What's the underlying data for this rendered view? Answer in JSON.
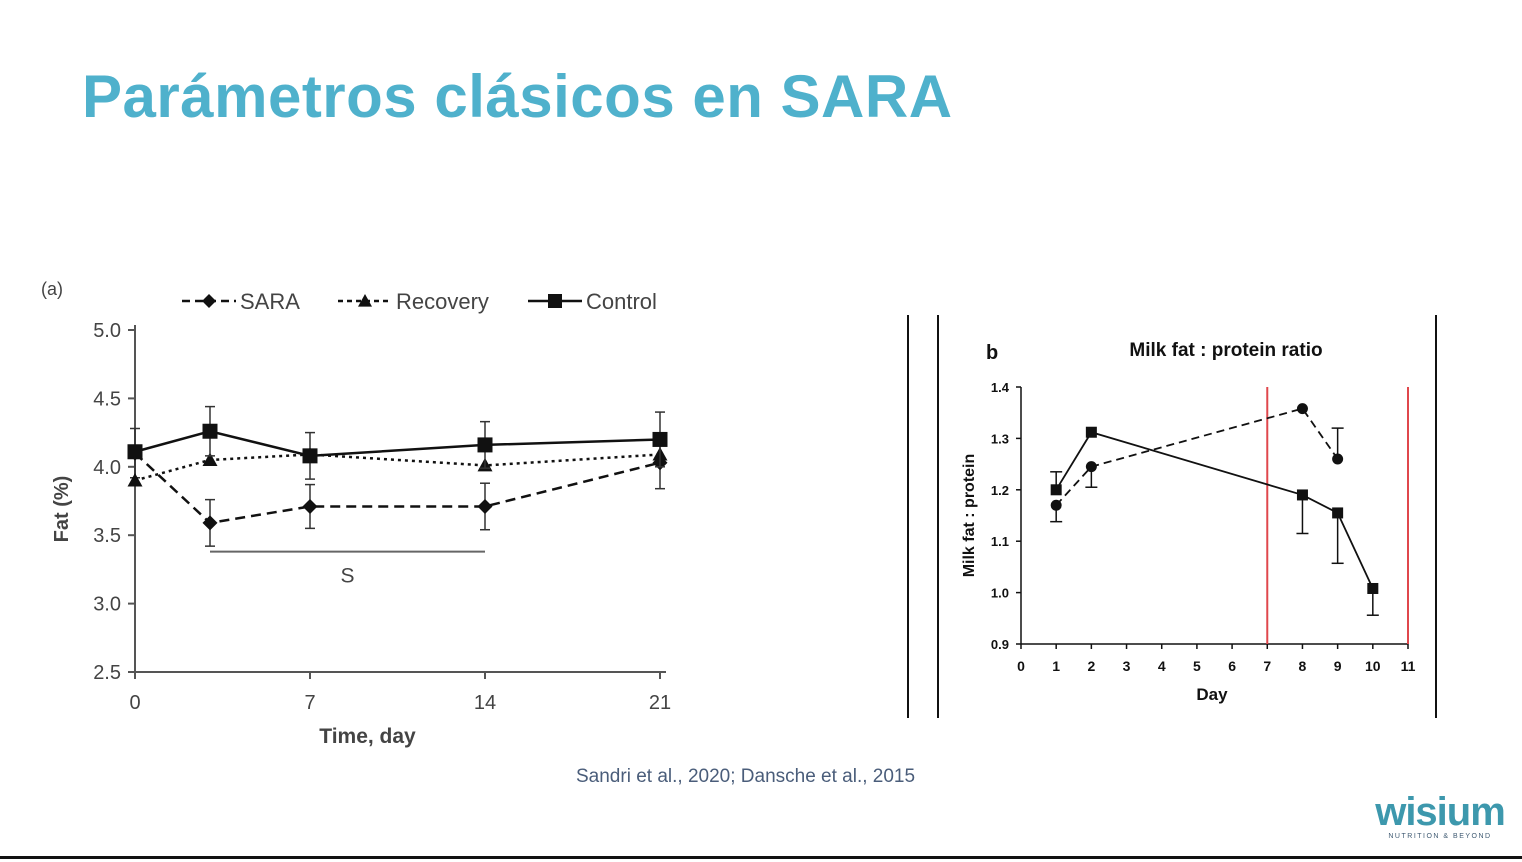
{
  "slide": {
    "title": "Parámetros clásicos en SARA",
    "citation": "Sandri et al., 2020; Dansche et al., 2015"
  },
  "logo": {
    "name": "wisium",
    "tagline": "NUTRITION & BEYOND"
  },
  "colors": {
    "title": "#4fb1cc",
    "logo": "#3d98ad",
    "redLine": "#e0474c"
  },
  "chart_data": [
    {
      "type": "line",
      "panel_label": "(a)",
      "title": "",
      "xlabel": "Time, day",
      "ylabel": "Fat (%)",
      "xlim": [
        0,
        21
      ],
      "ylim": [
        2.5,
        5.0
      ],
      "xticks": [
        0,
        7,
        14,
        21
      ],
      "yticks": [
        2.5,
        3.0,
        3.5,
        4.0,
        4.5,
        5.0
      ],
      "ytick_labels": [
        "2.5",
        "3.0",
        "3.5",
        "4.0",
        "4.5",
        "5.0"
      ],
      "legend_position": "top",
      "series": [
        {
          "name": "SARA",
          "style": "dashed",
          "marker": "diamond",
          "x": [
            0,
            3,
            7,
            14,
            21
          ],
          "y": [
            4.1,
            3.59,
            3.71,
            3.71,
            4.03
          ],
          "err": [
            0.18,
            0.17,
            0.16,
            0.17,
            0.19
          ]
        },
        {
          "name": "Recovery",
          "style": "dotted",
          "marker": "triangle",
          "x": [
            0,
            3,
            7,
            14,
            21
          ],
          "y": [
            3.9,
            4.05,
            4.09,
            4.01,
            4.09
          ],
          "err": [
            0.0,
            0.0,
            0.0,
            0.0,
            0.0
          ]
        },
        {
          "name": "Control",
          "style": "solid",
          "marker": "square",
          "x": [
            0,
            3,
            7,
            14,
            21
          ],
          "y": [
            4.11,
            4.26,
            4.08,
            4.16,
            4.2
          ],
          "err": [
            0.0,
            0.18,
            0.17,
            0.17,
            0.2
          ]
        }
      ],
      "annotations": [
        {
          "text": "S",
          "x_from": 3,
          "x_to": 14,
          "y": 3.38
        }
      ]
    },
    {
      "type": "line",
      "panel_label": "b",
      "title": "Milk fat : protein ratio",
      "xlabel": "Day",
      "ylabel": "Milk fat : protein",
      "xlim": [
        0,
        11
      ],
      "ylim": [
        0.9,
        1.4
      ],
      "xticks": [
        0,
        1,
        2,
        3,
        4,
        5,
        6,
        7,
        8,
        9,
        10,
        11
      ],
      "yticks": [
        0.9,
        1.0,
        1.1,
        1.2,
        1.3,
        1.4
      ],
      "ytick_labels": [
        "0.9",
        "1.0",
        "1.1",
        "1.2",
        "1.3",
        "1.4"
      ],
      "vertical_lines": [
        7,
        11
      ],
      "series": [
        {
          "name": "circles",
          "style": "dashed",
          "marker": "circle",
          "x": [
            1,
            2,
            8,
            9
          ],
          "y": [
            1.17,
            1.245,
            1.358,
            1.26
          ],
          "err": [
            0.032,
            0.04,
            0.0,
            0.06
          ],
          "err_dir": [
            -1,
            -1,
            1,
            1
          ]
        },
        {
          "name": "squares",
          "style": "solid",
          "marker": "square",
          "x": [
            1,
            2,
            8,
            9,
            10
          ],
          "y": [
            1.2,
            1.312,
            1.19,
            1.155,
            1.008
          ],
          "err": [
            0.035,
            0.0,
            0.075,
            0.098,
            0.052
          ],
          "err_dir": [
            1,
            1,
            -1,
            -1,
            -1
          ]
        }
      ]
    }
  ]
}
